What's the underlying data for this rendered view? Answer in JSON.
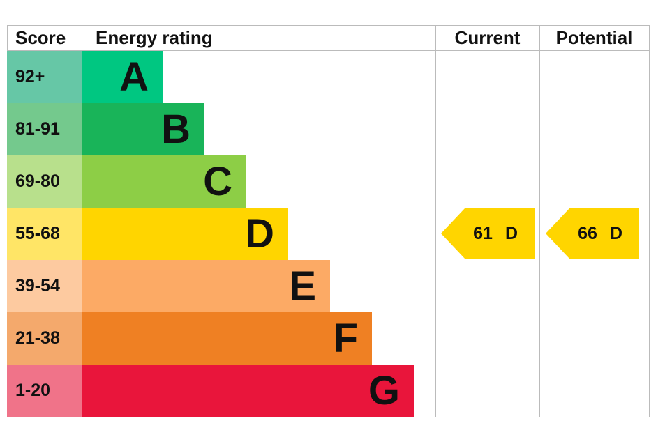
{
  "chart_data": {
    "type": "bar",
    "headers": {
      "score": "Score",
      "rating": "Energy rating",
      "current": "Current",
      "potential": "Potential"
    },
    "bands": [
      {
        "letter": "A",
        "range": "92+",
        "color": "#00c781",
        "score_color": "#66c7a6"
      },
      {
        "letter": "B",
        "range": "81-91",
        "color": "#19b459",
        "score_color": "#74c98d"
      },
      {
        "letter": "C",
        "range": "69-80",
        "color": "#8dce46",
        "score_color": "#b8e08c"
      },
      {
        "letter": "D",
        "range": "55-68",
        "color": "#ffd500",
        "score_color": "#ffe566"
      },
      {
        "letter": "E",
        "range": "39-54",
        "color": "#fcaa65",
        "score_color": "#fdcaa0"
      },
      {
        "letter": "F",
        "range": "21-38",
        "color": "#ef8023",
        "score_color": "#f4a96c"
      },
      {
        "letter": "G",
        "range": "1-20",
        "color": "#e9153b",
        "score_color": "#f07389"
      }
    ],
    "current": {
      "value": "61",
      "band": "D",
      "color": "#ffd500"
    },
    "potential": {
      "value": "66",
      "band": "D",
      "color": "#ffd500"
    }
  }
}
